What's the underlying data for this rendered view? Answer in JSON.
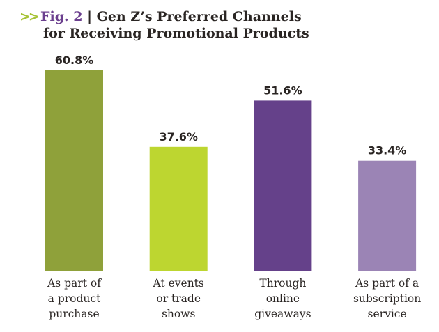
{
  "title": {
    "chevron": "»",
    "fig": "Fig. 2",
    "separator": " | ",
    "line1": "Gen Z’s Preferred Channels",
    "line2": "for Receiving Promotional Products"
  },
  "chart_data": {
    "type": "bar",
    "title": "Fig. 2 | Gen Z’s Preferred Channels for Receiving Promotional Products",
    "xlabel": "",
    "ylabel": "",
    "ylim": [
      0,
      70
    ],
    "grid": false,
    "categories": [
      [
        "As part of",
        "a product",
        "purchase"
      ],
      [
        "At events",
        "or trade",
        "shows"
      ],
      [
        "Through",
        "online",
        "giveaways"
      ],
      [
        "As part of a",
        "subscription",
        "service"
      ]
    ],
    "values": [
      60.8,
      37.6,
      51.6,
      33.4
    ],
    "labels": [
      "60.8%",
      "37.6%",
      "51.6%",
      "33.4%"
    ],
    "colors": [
      "#8fa13a",
      "#bdd630",
      "#65418a",
      "#9b84b5"
    ]
  }
}
